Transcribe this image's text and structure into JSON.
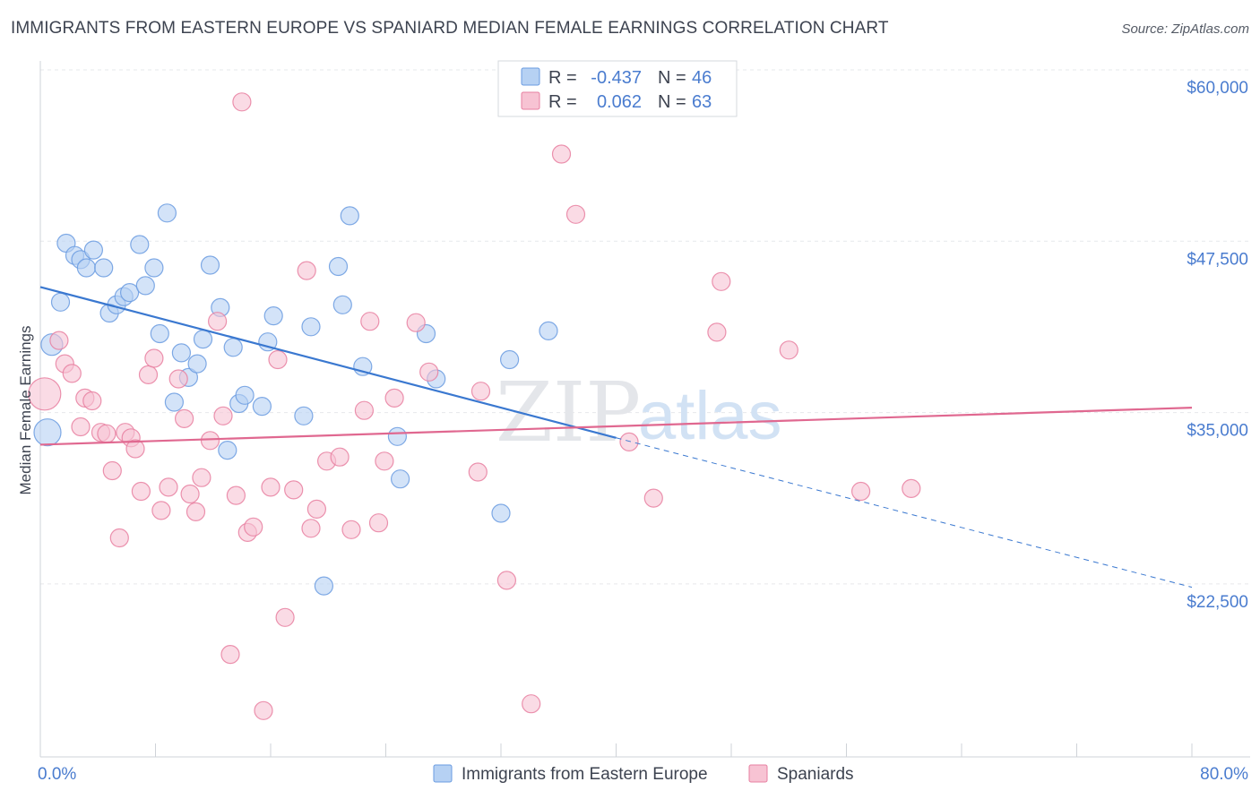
{
  "header": {
    "title": "IMMIGRANTS FROM EASTERN EUROPE VS SPANIARD MEDIAN FEMALE EARNINGS CORRELATION CHART",
    "source": "Source: ZipAtlas.com"
  },
  "watermark": {
    "text_zip": "ZIP",
    "text_atlas": "atlas"
  },
  "legend": {
    "r_label": "R =",
    "n_label": "N =",
    "rows": [
      {
        "r": "-0.437",
        "n": "46",
        "color": "#a8c8f0"
      },
      {
        "r": "0.062",
        "n": "63",
        "color": "#f5b8cb"
      }
    ]
  },
  "chart_data": {
    "type": "scatter",
    "title": "IMMIGRANTS FROM EASTERN EUROPE VS SPANIARD MEDIAN FEMALE EARNINGS CORRELATION CHART",
    "xlabel": "",
    "ylabel": "Median Female Earnings",
    "xlim": [
      0,
      80
    ],
    "ylim": [
      12500,
      62500
    ],
    "x_tick_labels": [
      "0.0%",
      "80.0%"
    ],
    "y_ticks": [
      {
        "value": 22500,
        "label": "$22,500"
      },
      {
        "value": 35000,
        "label": "$35,000"
      },
      {
        "value": 47500,
        "label": "$47,500"
      },
      {
        "value": 60000,
        "label": "$60,000"
      }
    ],
    "grid": true,
    "legend_position": "bottom",
    "series": [
      {
        "name": "Immigrants from Eastern Europe",
        "color": "#6a9be0",
        "fill": "#b6d1f3",
        "trend": {
          "x": [
            0,
            40
          ],
          "y": [
            45400,
            34400
          ],
          "dashed_to": [
            80,
            23500
          ]
        },
        "points": [
          [
            0.5,
            34800,
            15
          ],
          [
            0.8,
            41200,
            12
          ],
          [
            1.4,
            44300,
            10
          ],
          [
            1.8,
            48600,
            10
          ],
          [
            2.4,
            47700,
            10
          ],
          [
            2.8,
            47400,
            10
          ],
          [
            3.2,
            46800,
            10
          ],
          [
            3.7,
            48100,
            10
          ],
          [
            4.4,
            46800,
            10
          ],
          [
            4.8,
            43500,
            10
          ],
          [
            5.3,
            44100,
            10
          ],
          [
            5.8,
            44700,
            10
          ],
          [
            6.2,
            45000,
            10
          ],
          [
            6.9,
            48500,
            10
          ],
          [
            7.3,
            45500,
            10
          ],
          [
            7.9,
            46800,
            10
          ],
          [
            8.3,
            42000,
            10
          ],
          [
            8.8,
            50800,
            10
          ],
          [
            9.3,
            37000,
            10
          ],
          [
            9.8,
            40600,
            10
          ],
          [
            10.3,
            38800,
            10
          ],
          [
            10.9,
            39800,
            10
          ],
          [
            11.3,
            41600,
            10
          ],
          [
            11.8,
            47000,
            10
          ],
          [
            12.5,
            43900,
            10
          ],
          [
            13.0,
            33500,
            10
          ],
          [
            13.4,
            41000,
            10
          ],
          [
            13.8,
            36900,
            10
          ],
          [
            14.2,
            37500,
            10
          ],
          [
            15.4,
            36700,
            10
          ],
          [
            15.8,
            41400,
            10
          ],
          [
            16.2,
            43300,
            10
          ],
          [
            18.3,
            36000,
            10
          ],
          [
            18.8,
            42500,
            10
          ],
          [
            19.7,
            23600,
            10
          ],
          [
            20.7,
            46900,
            10
          ],
          [
            21.0,
            44100,
            10
          ],
          [
            21.5,
            50600,
            10
          ],
          [
            22.4,
            39600,
            10
          ],
          [
            24.8,
            34500,
            10
          ],
          [
            25.0,
            31400,
            10
          ],
          [
            26.8,
            42000,
            10
          ],
          [
            27.5,
            38700,
            10
          ],
          [
            32.0,
            28900,
            10
          ],
          [
            32.6,
            40100,
            10
          ],
          [
            35.3,
            42200,
            10
          ]
        ]
      },
      {
        "name": "Spaniards",
        "color": "#e77fa0",
        "fill": "#f7c3d3",
        "trend": {
          "x": [
            0,
            80
          ],
          "y": [
            33900,
            36600
          ]
        },
        "points": [
          [
            0.3,
            37600,
            18
          ],
          [
            1.3,
            41500,
            10
          ],
          [
            1.7,
            39800,
            10
          ],
          [
            2.2,
            39100,
            10
          ],
          [
            2.8,
            35200,
            10
          ],
          [
            3.1,
            37300,
            10
          ],
          [
            3.6,
            37100,
            10
          ],
          [
            4.2,
            34800,
            10
          ],
          [
            4.6,
            34700,
            10
          ],
          [
            5.0,
            32000,
            10
          ],
          [
            5.5,
            27100,
            10
          ],
          [
            5.9,
            34800,
            10
          ],
          [
            6.3,
            34400,
            10
          ],
          [
            6.6,
            33600,
            10
          ],
          [
            7.0,
            30500,
            10
          ],
          [
            7.5,
            39000,
            10
          ],
          [
            7.9,
            40200,
            10
          ],
          [
            8.4,
            29100,
            10
          ],
          [
            8.9,
            30800,
            10
          ],
          [
            9.6,
            38700,
            10
          ],
          [
            10.0,
            35800,
            10
          ],
          [
            10.4,
            30300,
            10
          ],
          [
            10.8,
            29000,
            10
          ],
          [
            11.2,
            31500,
            10
          ],
          [
            11.8,
            34200,
            10
          ],
          [
            12.3,
            42900,
            10
          ],
          [
            12.7,
            36000,
            10
          ],
          [
            13.2,
            18600,
            10
          ],
          [
            13.6,
            30200,
            10
          ],
          [
            14.0,
            58900,
            10
          ],
          [
            14.4,
            27500,
            10
          ],
          [
            14.8,
            27900,
            10
          ],
          [
            15.5,
            14500,
            10
          ],
          [
            16.0,
            30800,
            10
          ],
          [
            16.5,
            40100,
            10
          ],
          [
            17.0,
            21300,
            10
          ],
          [
            17.6,
            30600,
            10
          ],
          [
            18.5,
            46600,
            10
          ],
          [
            18.8,
            27800,
            10
          ],
          [
            19.2,
            29200,
            10
          ],
          [
            19.9,
            32700,
            10
          ],
          [
            20.8,
            33000,
            10
          ],
          [
            21.6,
            27700,
            10
          ],
          [
            22.5,
            36400,
            10
          ],
          [
            22.9,
            42900,
            10
          ],
          [
            23.5,
            28200,
            10
          ],
          [
            23.9,
            32700,
            10
          ],
          [
            24.6,
            37300,
            10
          ],
          [
            26.1,
            42800,
            10
          ],
          [
            27.0,
            39200,
            10
          ],
          [
            30.4,
            31900,
            10
          ],
          [
            30.6,
            37800,
            10
          ],
          [
            32.4,
            24000,
            10
          ],
          [
            34.1,
            15000,
            10
          ],
          [
            36.2,
            55100,
            10
          ],
          [
            37.2,
            50700,
            10
          ],
          [
            40.9,
            34100,
            10
          ],
          [
            42.6,
            30000,
            10
          ],
          [
            47.0,
            42100,
            10
          ],
          [
            47.3,
            45800,
            10
          ],
          [
            52.0,
            40800,
            10
          ],
          [
            57.0,
            30500,
            10
          ],
          [
            60.5,
            30700,
            10
          ]
        ]
      }
    ]
  }
}
